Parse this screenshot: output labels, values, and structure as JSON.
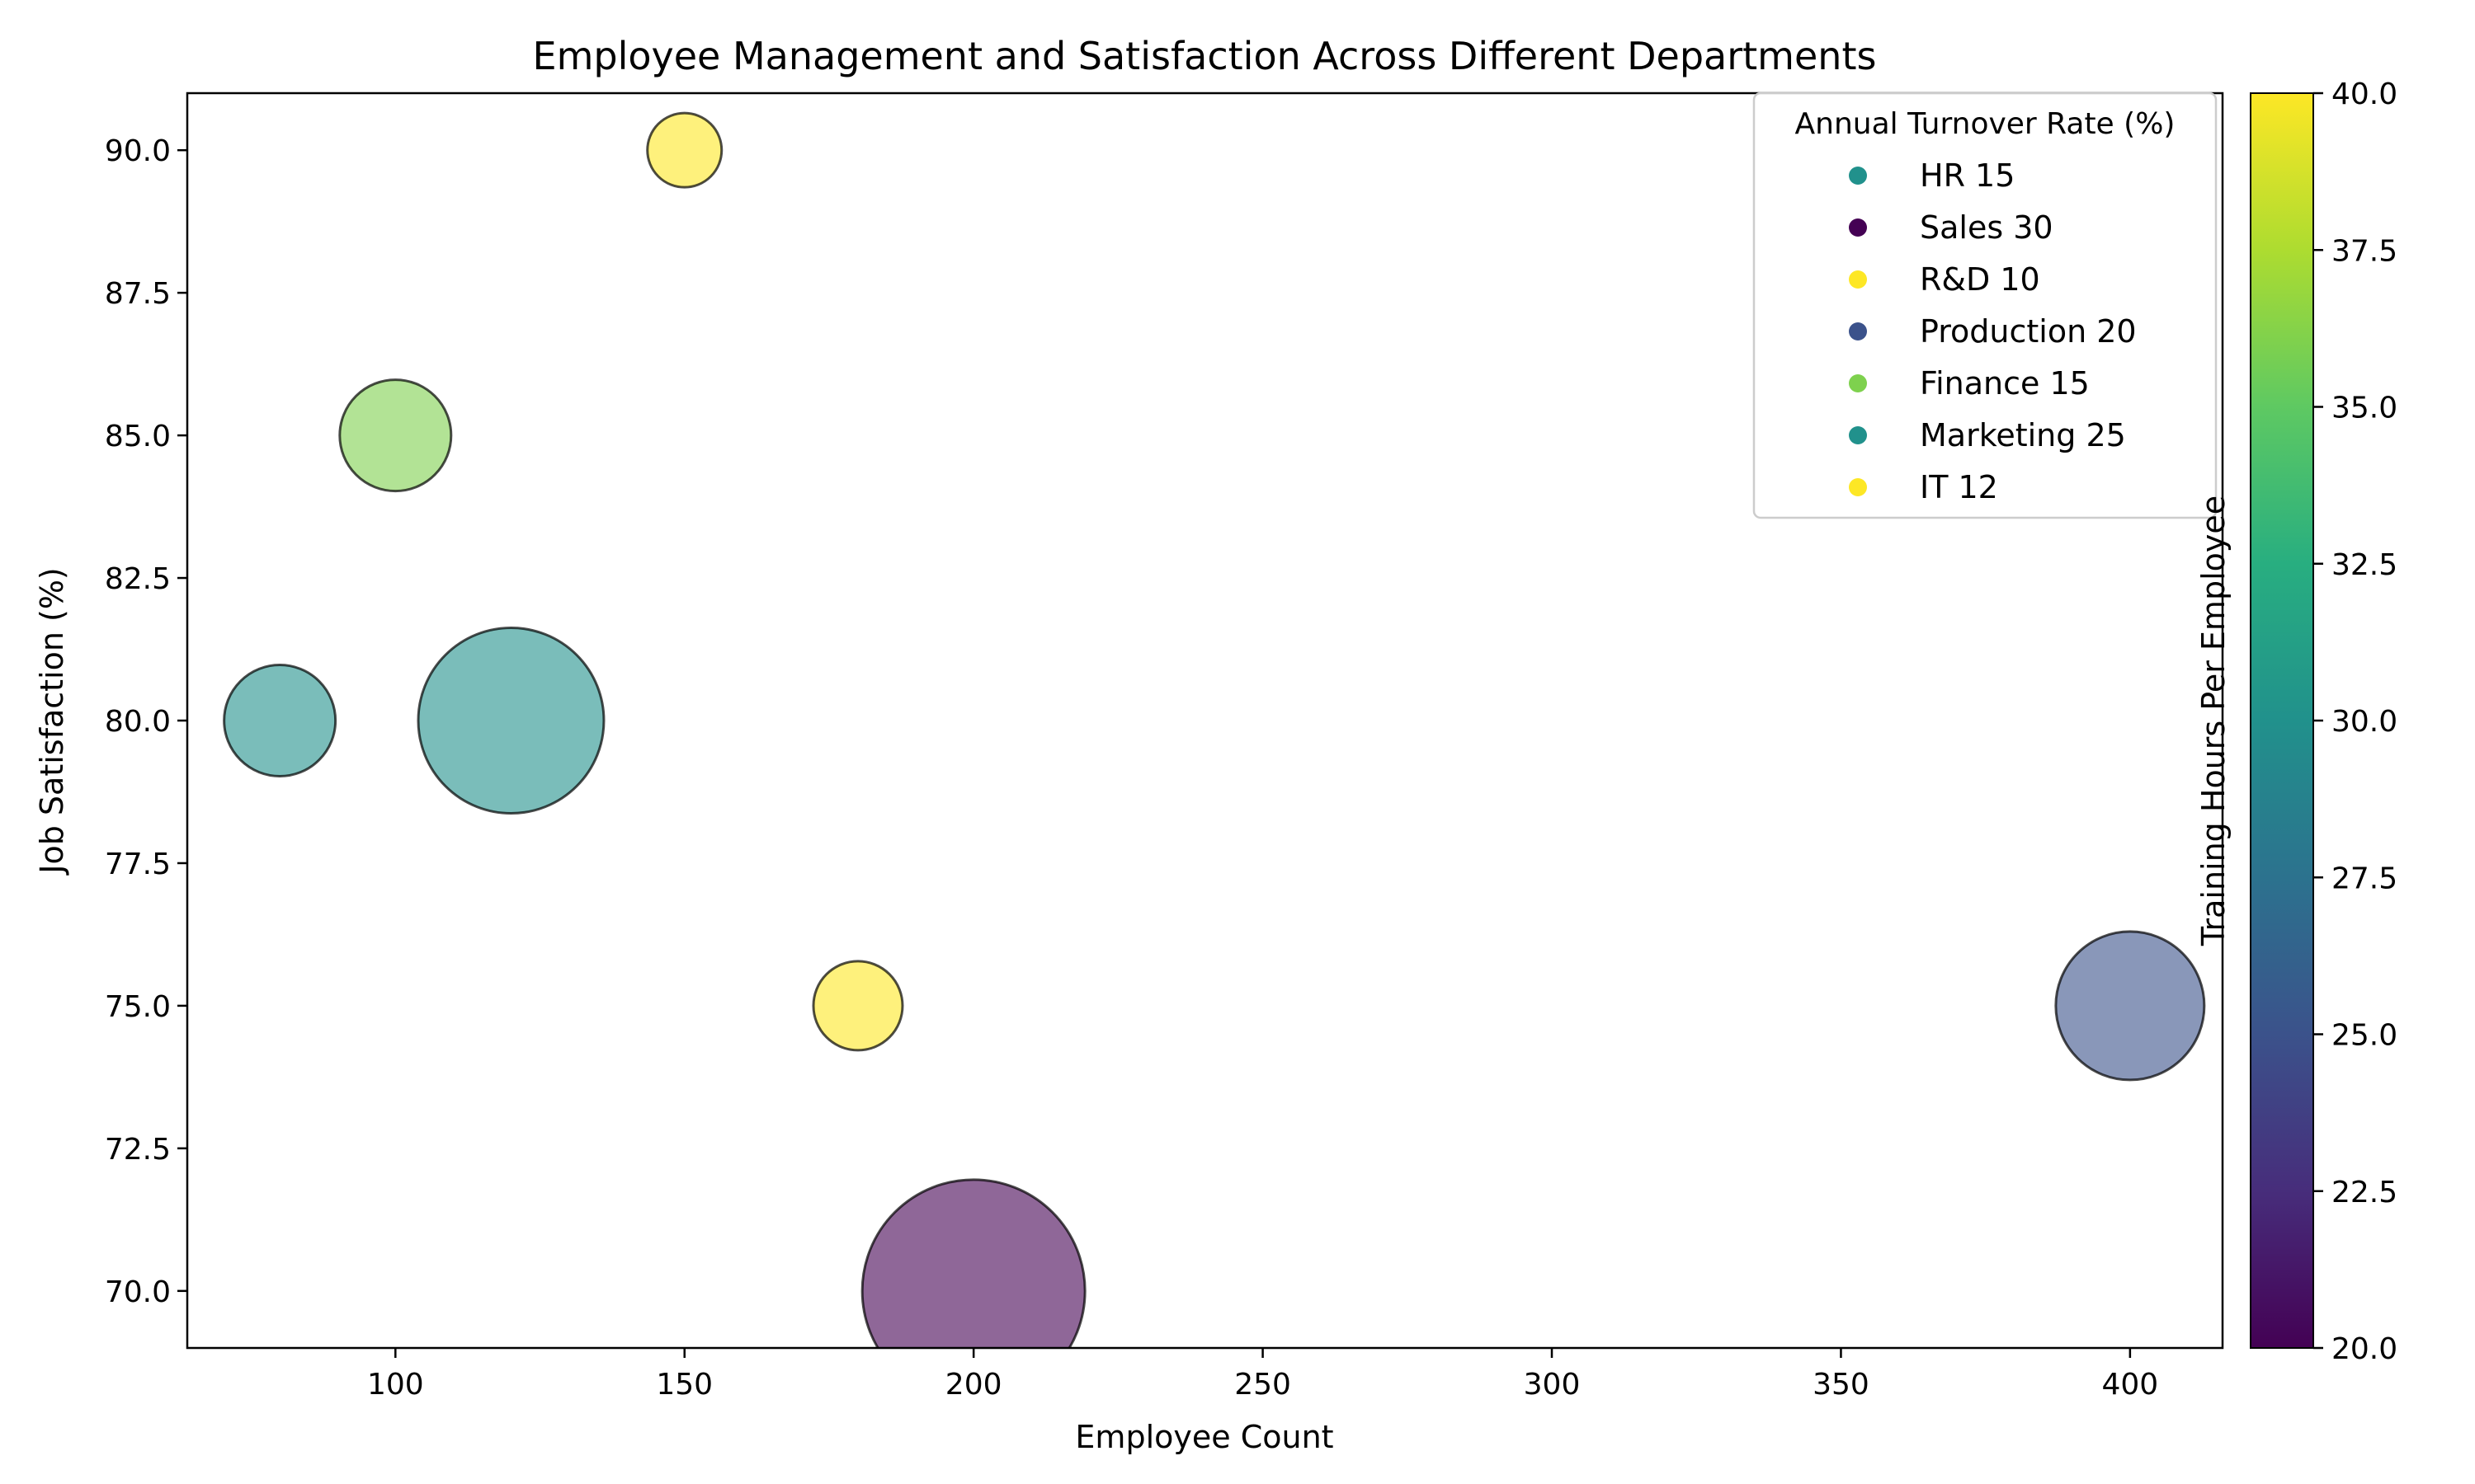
{
  "chart_data": {
    "type": "scatter",
    "title": "Employee Management and Satisfaction Across Different Departments",
    "xlabel": "Employee Count",
    "ylabel": "Job Satisfaction (%)",
    "xlim": [
      64,
      416
    ],
    "ylim": [
      69,
      91
    ],
    "xticks": [
      100,
      150,
      200,
      250,
      300,
      350,
      400
    ],
    "yticks": [
      70.0,
      72.5,
      75.0,
      77.5,
      80.0,
      82.5,
      85.0,
      87.5,
      90.0
    ],
    "grid": false,
    "size_meaning": "Annual Turnover Rate (%)",
    "color_meaning": "Training Hours Per Employee",
    "legend": {
      "title": "Annual Turnover Rate (%)",
      "placement": "top-right"
    },
    "colorbar": {
      "label": "Training Hours Per Employee",
      "range": [
        20,
        40
      ],
      "ticks": [
        20.0,
        22.5,
        25.0,
        27.5,
        30.0,
        32.5,
        35.0,
        37.5,
        40.0
      ],
      "colormap": "viridis"
    },
    "points": [
      {
        "department": "HR",
        "employees": 80,
        "satisfaction": 80,
        "turnover": 15,
        "training": 30,
        "legend_label": "HR 15"
      },
      {
        "department": "Sales",
        "employees": 200,
        "satisfaction": 70,
        "turnover": 30,
        "training": 20,
        "legend_label": "Sales 30"
      },
      {
        "department": "R&D",
        "employees": 150,
        "satisfaction": 90,
        "turnover": 10,
        "training": 40,
        "legend_label": "R&D 10"
      },
      {
        "department": "Production",
        "employees": 400,
        "satisfaction": 75,
        "turnover": 20,
        "training": 25,
        "legend_label": "Production 20"
      },
      {
        "department": "Finance",
        "employees": 100,
        "satisfaction": 85,
        "turnover": 15,
        "training": 36,
        "legend_label": "Finance 15"
      },
      {
        "department": "Marketing",
        "employees": 120,
        "satisfaction": 80,
        "turnover": 25,
        "training": 30,
        "legend_label": "Marketing 25"
      },
      {
        "department": "IT",
        "employees": 180,
        "satisfaction": 75,
        "turnover": 12,
        "training": 40,
        "legend_label": "IT 12"
      }
    ]
  }
}
